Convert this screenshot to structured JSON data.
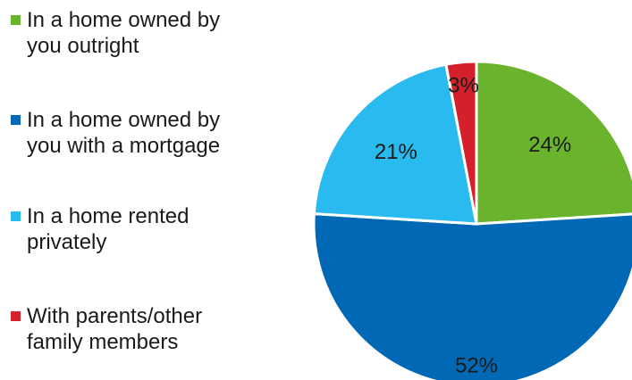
{
  "chart_data": {
    "type": "pie",
    "categories": [
      "In a home owned by you outright",
      "In a home owned by you with a mortgage",
      "In a home rented privately",
      "With parents/other family members"
    ],
    "values": [
      24,
      52,
      21,
      3
    ],
    "value_labels": [
      "24%",
      "52%",
      "21%",
      "3%"
    ],
    "colors": [
      "#6ab42d",
      "#0068b4",
      "#29bbef",
      "#d4202a"
    ],
    "legend": "left"
  }
}
